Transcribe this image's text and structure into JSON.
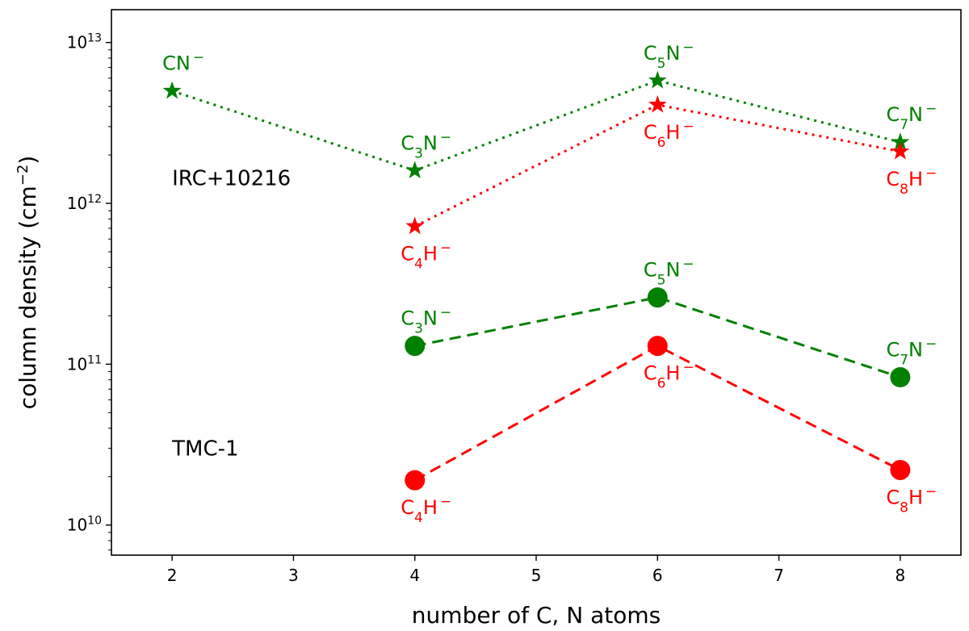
{
  "chart_data": {
    "type": "line",
    "yscale": "log",
    "xlabel": "number of C, N atoms",
    "ylabel": "column density (cm",
    "ylabel_unit_superscript": "−2",
    "ylabel_closing": ")",
    "xlim": [
      1.5,
      8.5
    ],
    "ylim": [
      6500000000.0,
      16000000000000.0
    ],
    "xticks": [
      {
        "value": 2,
        "label": "2"
      },
      {
        "value": 3,
        "label": "3"
      },
      {
        "value": 4,
        "label": "4"
      },
      {
        "value": 5,
        "label": "5"
      },
      {
        "value": 6,
        "label": "6"
      },
      {
        "value": 7,
        "label": "7"
      },
      {
        "value": 8,
        "label": "8"
      }
    ],
    "yticks": [
      {
        "value": 10000000000.0,
        "base": "10",
        "exp": "10"
      },
      {
        "value": 100000000000.0,
        "base": "10",
        "exp": "11"
      },
      {
        "value": 1000000000000.0,
        "base": "10",
        "exp": "12"
      },
      {
        "value": 10000000000000.0,
        "base": "10",
        "exp": "13"
      }
    ],
    "annotations": [
      {
        "text": "IRC+10216",
        "x": 2.0,
        "y": 1300000000000.0
      },
      {
        "text": "TMC-1",
        "x": 2.0,
        "y": 27000000000.0
      }
    ],
    "series": [
      {
        "name": "IRC+10216 CnN−",
        "color": "#008000",
        "marker": "star",
        "linestyle": "dotted",
        "points": [
          {
            "x": 2,
            "y": 5000000000000.0,
            "label": {
              "pre": "CN",
              "sub": "",
              "post": "",
              "sup": "−",
              "pos": "above"
            }
          },
          {
            "x": 4,
            "y": 1600000000000.0,
            "label": {
              "pre": "C",
              "sub": "3",
              "post": "N",
              "sup": "−",
              "pos": "above"
            }
          },
          {
            "x": 6,
            "y": 5800000000000.0,
            "label": {
              "pre": "C",
              "sub": "5",
              "post": "N",
              "sup": "−",
              "pos": "above"
            }
          },
          {
            "x": 8,
            "y": 2400000000000.0,
            "label": {
              "pre": "C",
              "sub": "7",
              "post": "N",
              "sup": "−",
              "pos": "above"
            }
          }
        ]
      },
      {
        "name": "IRC+10216 CnH−",
        "color": "#ff0000",
        "marker": "star",
        "linestyle": "dotted",
        "points": [
          {
            "x": 4,
            "y": 720000000000.0,
            "label": {
              "pre": "C",
              "sub": "4",
              "post": "H",
              "sup": "−",
              "pos": "below"
            }
          },
          {
            "x": 6,
            "y": 4100000000000.0,
            "label": {
              "pre": "C",
              "sub": "6",
              "post": "H",
              "sup": "−",
              "pos": "below"
            }
          },
          {
            "x": 8,
            "y": 2100000000000.0,
            "label": {
              "pre": "C",
              "sub": "8",
              "post": "H",
              "sup": "−",
              "pos": "below"
            }
          }
        ]
      },
      {
        "name": "TMC-1 CnN−",
        "color": "#008000",
        "marker": "circle",
        "linestyle": "dashed",
        "points": [
          {
            "x": 4,
            "y": 130000000000.0,
            "label": {
              "pre": "C",
              "sub": "3",
              "post": "N",
              "sup": "−",
              "pos": "above"
            }
          },
          {
            "x": 6,
            "y": 260000000000.0,
            "label": {
              "pre": "C",
              "sub": "5",
              "post": "N",
              "sup": "−",
              "pos": "above"
            }
          },
          {
            "x": 8,
            "y": 83000000000.0,
            "label": {
              "pre": "C",
              "sub": "7",
              "post": "N",
              "sup": "−",
              "pos": "above"
            }
          }
        ]
      },
      {
        "name": "TMC-1 CnH−",
        "color": "#ff0000",
        "marker": "circle",
        "linestyle": "dashed",
        "points": [
          {
            "x": 4,
            "y": 19000000000.0,
            "label": {
              "pre": "C",
              "sub": "4",
              "post": "H",
              "sup": "−",
              "pos": "below"
            }
          },
          {
            "x": 6,
            "y": 130000000000.0,
            "label": {
              "pre": "C",
              "sub": "6",
              "post": "H",
              "sup": "−",
              "pos": "below"
            }
          },
          {
            "x": 8,
            "y": 22000000000.0,
            "label": {
              "pre": "C",
              "sub": "8",
              "post": "H",
              "sup": "−",
              "pos": "below"
            }
          }
        ]
      }
    ]
  }
}
